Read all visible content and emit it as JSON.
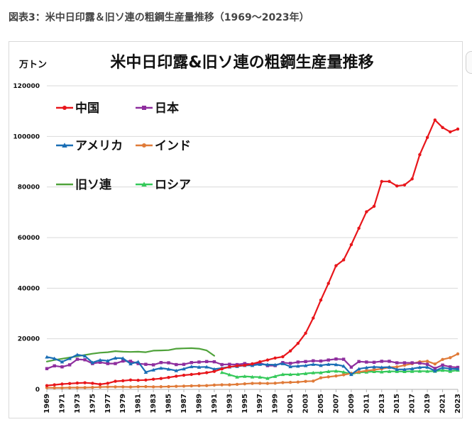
{
  "caption": "図表3：米中日印露＆旧ソ連の粗鋼生産量推移（1969〜2023年）",
  "chart_data": {
    "type": "line",
    "title": "米中日印露&旧ソ連の粗鋼生産量推移",
    "ylabel": "万トン",
    "xlabel": "",
    "ylim": [
      0,
      120000
    ],
    "yticks": [
      "0",
      "20000",
      "40000",
      "60000",
      "80000",
      "100000",
      "120000"
    ],
    "xticks": [
      "1969",
      "1971",
      "1973",
      "1975",
      "1977",
      "1979",
      "1981",
      "1983",
      "1985",
      "1987",
      "1989",
      "1991",
      "1993",
      "1995",
      "1997",
      "1999",
      "2001",
      "2003",
      "2005",
      "2007",
      "2009",
      "2011",
      "2013",
      "2015",
      "2017",
      "2019",
      "2021",
      "2023"
    ],
    "x_start": 1969,
    "x_end": 2023,
    "grid": "horizontal",
    "legend": "top-left",
    "series": [
      {
        "name": "中国",
        "color": "#e8161b",
        "marker": "circle",
        "x": [
          1969,
          1970,
          1971,
          1972,
          1973,
          1974,
          1975,
          1976,
          1977,
          1978,
          1979,
          1980,
          1981,
          1982,
          1983,
          1984,
          1985,
          1986,
          1987,
          1988,
          1989,
          1990,
          1991,
          1992,
          1993,
          1994,
          1995,
          1996,
          1997,
          1998,
          1999,
          2000,
          2001,
          2002,
          2003,
          2004,
          2005,
          2006,
          2007,
          2008,
          2009,
          2010,
          2011,
          2012,
          2013,
          2014,
          2015,
          2016,
          2017,
          2018,
          2019,
          2020,
          2021,
          2022,
          2023
        ],
        "values": [
          1500,
          1800,
          2100,
          2300,
          2500,
          2600,
          2400,
          2000,
          2400,
          3200,
          3400,
          3700,
          3600,
          3700,
          4000,
          4300,
          4700,
          5200,
          5600,
          5900,
          6200,
          6600,
          7100,
          8100,
          8900,
          9300,
          9500,
          10100,
          10900,
          11600,
          12400,
          12900,
          15200,
          18200,
          22200,
          28200,
          35300,
          41900,
          48900,
          51200,
          57200,
          63700,
          70200,
          72400,
          82200,
          82200,
          80400,
          80800,
          83200,
          92800,
          99600,
          106500,
          103500,
          101800,
          102900
        ]
      },
      {
        "name": "日本",
        "color": "#8e2e9e",
        "marker": "square",
        "x": [
          1969,
          1970,
          1971,
          1972,
          1973,
          1974,
          1975,
          1976,
          1977,
          1978,
          1979,
          1980,
          1981,
          1982,
          1983,
          1984,
          1985,
          1986,
          1987,
          1988,
          1989,
          1990,
          1991,
          1992,
          1993,
          1994,
          1995,
          1996,
          1997,
          1998,
          1999,
          2000,
          2001,
          2002,
          2003,
          2004,
          2005,
          2006,
          2007,
          2008,
          2009,
          2010,
          2011,
          2012,
          2013,
          2014,
          2015,
          2016,
          2017,
          2018,
          2019,
          2020,
          2021,
          2022,
          2023
        ],
        "values": [
          8200,
          9300,
          8900,
          9700,
          11900,
          11700,
          10200,
          10700,
          10200,
          10200,
          11200,
          11100,
          10200,
          9900,
          9700,
          10600,
          10500,
          9800,
          9900,
          10600,
          10800,
          11000,
          10900,
          9800,
          9900,
          9800,
          10200,
          9900,
          10500,
          9400,
          9400,
          10600,
          10300,
          10800,
          11000,
          11300,
          11200,
          11600,
          12000,
          11900,
          8800,
          11000,
          10800,
          10700,
          11100,
          11100,
          10500,
          10500,
          10500,
          10400,
          9900,
          8300,
          9600,
          8900,
          8700
        ]
      },
      {
        "name": "アメリカ",
        "color": "#1a6eb5",
        "marker": "triangle",
        "x": [
          1969,
          1970,
          1971,
          1972,
          1973,
          1974,
          1975,
          1976,
          1977,
          1978,
          1979,
          1980,
          1981,
          1982,
          1983,
          1984,
          1985,
          1986,
          1987,
          1988,
          1989,
          1990,
          1991,
          1992,
          1993,
          1994,
          1995,
          1996,
          1997,
          1998,
          1999,
          2000,
          2001,
          2002,
          2003,
          2004,
          2005,
          2006,
          2007,
          2008,
          2009,
          2010,
          2011,
          2012,
          2013,
          2014,
          2015,
          2016,
          2017,
          2018,
          2019,
          2020,
          2021,
          2022,
          2023
        ],
        "values": [
          12800,
          12200,
          10900,
          12200,
          13700,
          13200,
          10600,
          11600,
          11300,
          12400,
          12300,
          10100,
          10900,
          6800,
          7700,
          8400,
          8000,
          7400,
          8100,
          9000,
          8800,
          8900,
          8000,
          8400,
          8900,
          9100,
          9500,
          9500,
          9900,
          9800,
          9700,
          10200,
          9000,
          9200,
          9400,
          9900,
          9500,
          9900,
          9800,
          9200,
          5900,
          8100,
          8600,
          8900,
          8700,
          8800,
          7900,
          7900,
          8200,
          8700,
          8800,
          7300,
          8600,
          8100,
          8100
        ]
      },
      {
        "name": "インド",
        "color": "#e07b39",
        "marker": "circle",
        "x": [
          1969,
          1970,
          1971,
          1972,
          1973,
          1974,
          1975,
          1976,
          1977,
          1978,
          1979,
          1980,
          1981,
          1982,
          1983,
          1984,
          1985,
          1986,
          1987,
          1988,
          1989,
          1990,
          1991,
          1992,
          1993,
          1994,
          1995,
          1996,
          1997,
          1998,
          1999,
          2000,
          2001,
          2002,
          2003,
          2004,
          2005,
          2006,
          2007,
          2008,
          2009,
          2010,
          2011,
          2012,
          2013,
          2014,
          2015,
          2016,
          2017,
          2018,
          2019,
          2020,
          2021,
          2022,
          2023
        ],
        "values": [
          650,
          620,
          610,
          690,
          690,
          710,
          790,
          930,
          1000,
          1000,
          1000,
          950,
          1080,
          1100,
          1000,
          1050,
          1110,
          1210,
          1290,
          1390,
          1460,
          1500,
          1710,
          1810,
          1820,
          1980,
          2200,
          2370,
          2410,
          2350,
          2430,
          2690,
          2780,
          2890,
          3180,
          3270,
          4580,
          4940,
          5310,
          5750,
          6340,
          6900,
          7360,
          7730,
          8120,
          8730,
          8900,
          9550,
          10150,
          10930,
          11130,
          10030,
          11820,
          12530,
          14020
        ]
      },
      {
        "name": "旧ソ連",
        "color": "#4fa23a",
        "marker": "none",
        "x": [
          1969,
          1970,
          1971,
          1972,
          1973,
          1974,
          1975,
          1976,
          1977,
          1978,
          1979,
          1980,
          1981,
          1982,
          1983,
          1984,
          1985,
          1986,
          1987,
          1988,
          1989,
          1990,
          1991
        ],
        "values": [
          11000,
          11600,
          12100,
          12600,
          13100,
          13600,
          14100,
          14500,
          14700,
          15100,
          14900,
          14800,
          14900,
          14700,
          15300,
          15400,
          15500,
          16100,
          16200,
          16300,
          16100,
          15400,
          13300
        ]
      },
      {
        "name": "ロシア",
        "color": "#35c95a",
        "marker": "triangle",
        "x": [
          1992,
          1993,
          1994,
          1995,
          1996,
          1997,
          1998,
          1999,
          2000,
          2001,
          2002,
          2003,
          2004,
          2005,
          2006,
          2007,
          2008,
          2009,
          2010,
          2011,
          2012,
          2013,
          2014,
          2015,
          2016,
          2017,
          2018,
          2019,
          2020,
          2021,
          2022,
          2023
        ],
        "values": [
          6700,
          5800,
          4880,
          5160,
          4930,
          4850,
          4380,
          5150,
          5910,
          5900,
          5980,
          6270,
          6560,
          6620,
          7080,
          7240,
          6850,
          6000,
          6700,
          6860,
          7060,
          6910,
          7110,
          7090,
          7050,
          7150,
          7210,
          7160,
          7170,
          7560,
          7150,
          7580
        ]
      }
    ]
  }
}
